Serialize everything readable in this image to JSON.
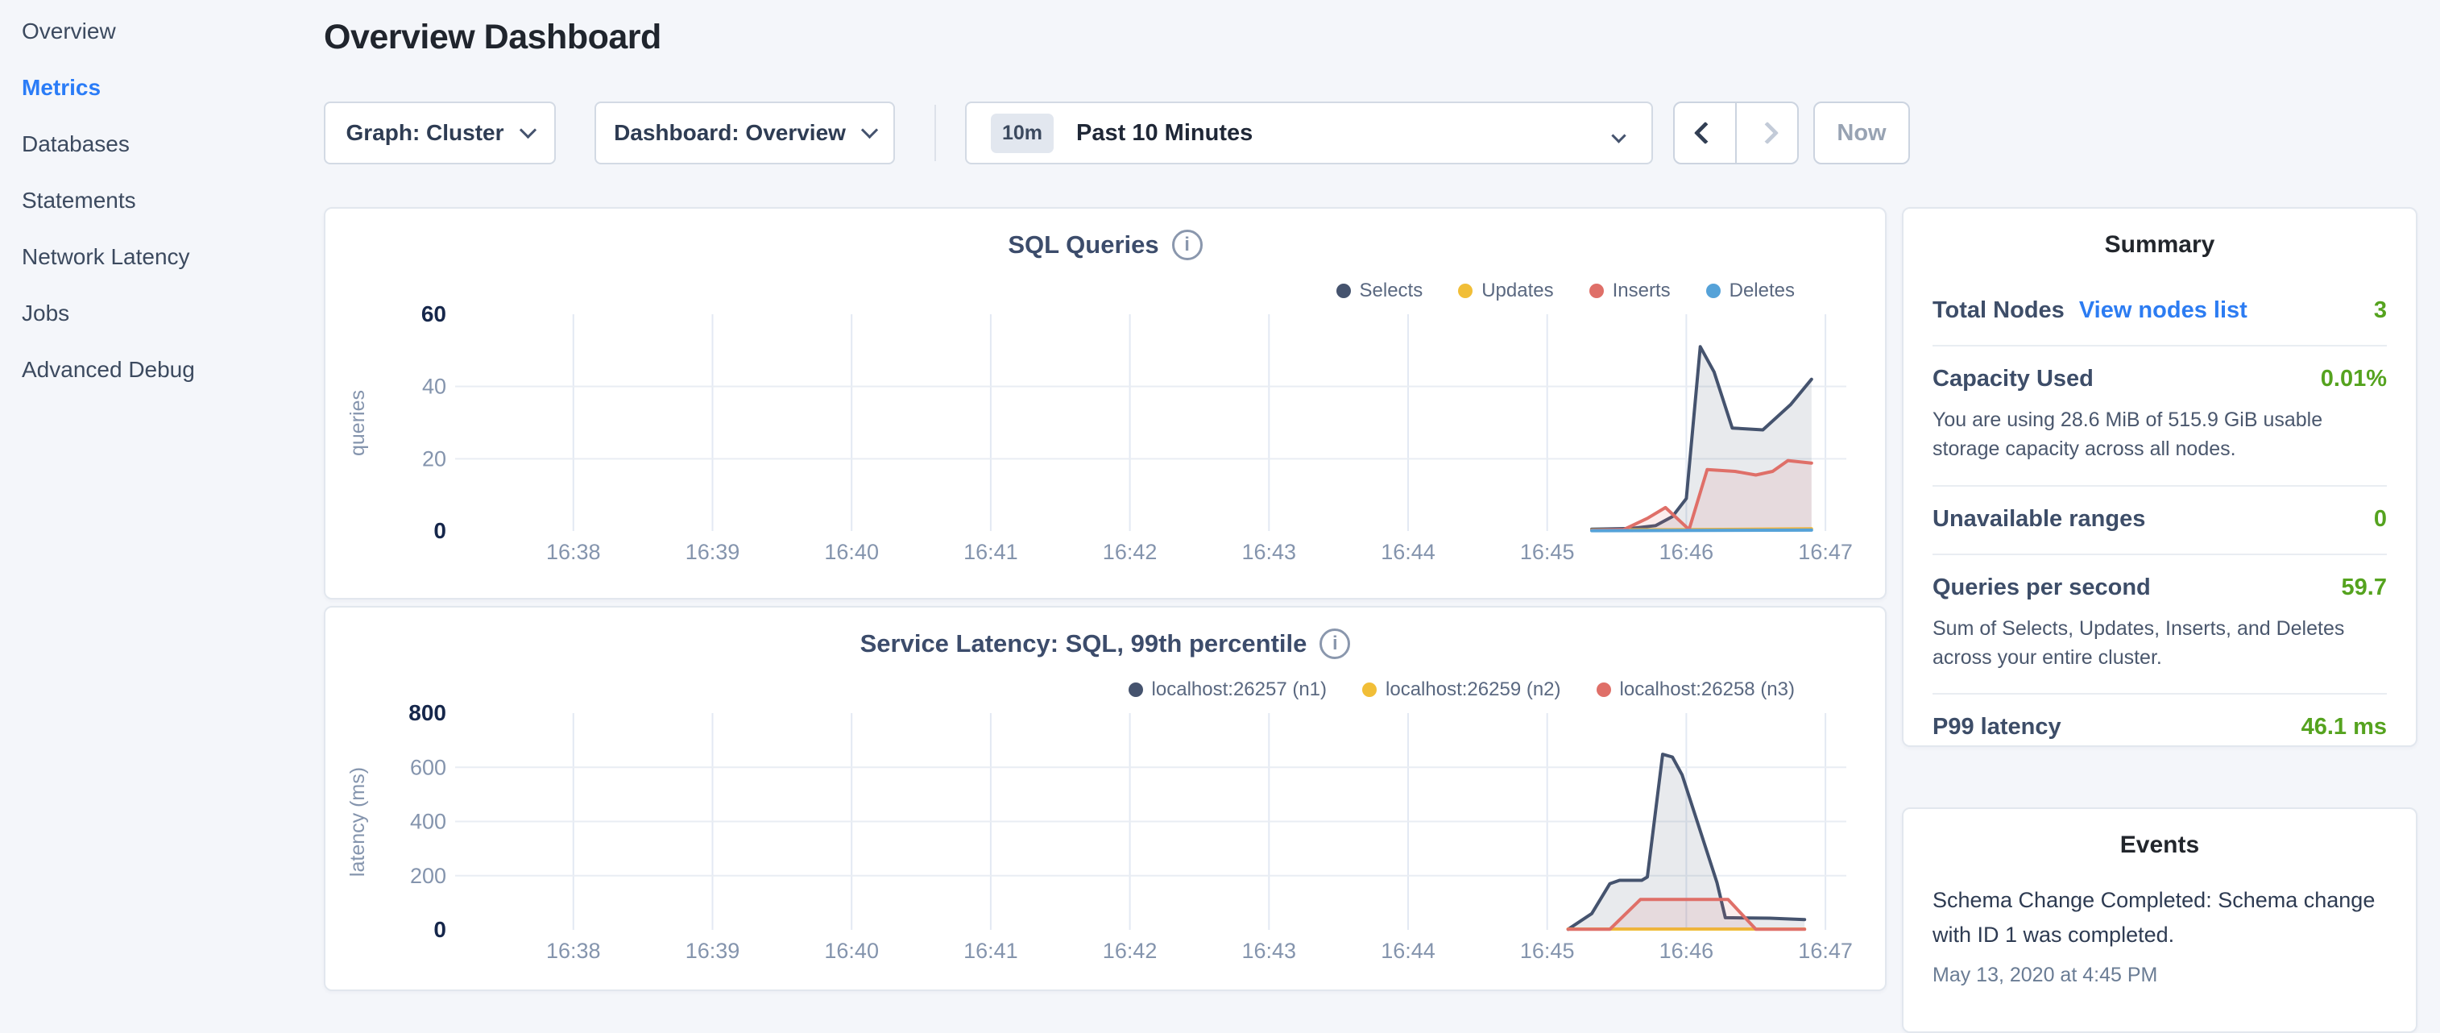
{
  "sidebar": {
    "items": [
      {
        "label": "Overview",
        "active": false
      },
      {
        "label": "Metrics",
        "active": true
      },
      {
        "label": "Databases",
        "active": false
      },
      {
        "label": "Statements",
        "active": false
      },
      {
        "label": "Network Latency",
        "active": false
      },
      {
        "label": "Jobs",
        "active": false
      },
      {
        "label": "Advanced Debug",
        "active": false
      }
    ]
  },
  "header": {
    "title": "Overview Dashboard"
  },
  "toolbar": {
    "graph_selector": "Graph: Cluster",
    "dashboard_selector": "Dashboard: Overview",
    "time_badge": "10m",
    "time_label": "Past 10 Minutes",
    "now_label": "Now"
  },
  "icons": {
    "info_glyph": "i"
  },
  "colors": {
    "accent_blue": "#2a7cf7",
    "link_blue": "#2c7cf2",
    "value_green": "#55a31f",
    "series_navy": "#45536e",
    "series_yellow": "#f1be37",
    "series_red": "#df6f68",
    "series_blue": "#55a2d8"
  },
  "summary": {
    "title": "Summary",
    "rows": [
      {
        "label": "Total Nodes",
        "link": "View nodes list",
        "value": "3"
      },
      {
        "label": "Capacity Used",
        "value": "0.01%",
        "description": "You are using 28.6 MiB of 515.9 GiB usable storage capacity across all nodes."
      },
      {
        "label": "Unavailable ranges",
        "value": "0"
      },
      {
        "label": "Queries per second",
        "value": "59.7",
        "description": "Sum of Selects, Updates, Inserts, and Deletes across your entire cluster."
      },
      {
        "label": "P99 latency",
        "value": "46.1 ms"
      }
    ]
  },
  "events": {
    "title": "Events",
    "items": [
      {
        "message": "Schema Change Completed: Schema change with ID 1 was completed.",
        "timestamp": "May 13, 2020 at 4:45 PM"
      }
    ]
  },
  "chart_data": [
    {
      "type": "area",
      "title": "SQL Queries",
      "xlabel": "",
      "ylabel": "queries",
      "ylim": [
        0,
        60
      ],
      "y_ticks": [
        0,
        20,
        40,
        60
      ],
      "x_tick_labels": [
        "16:38",
        "16:39",
        "16:40",
        "16:41",
        "16:42",
        "16:43",
        "16:44",
        "16:45",
        "16:46",
        "16:47"
      ],
      "x_min": -0.85,
      "x_max": 9.15,
      "grid": true,
      "legend_position": "top-right",
      "series": [
        {
          "name": "Selects",
          "color": "#45536e",
          "points": [
            [
              7.32,
              0.5
            ],
            [
              7.6,
              0.7
            ],
            [
              7.78,
              1.5
            ],
            [
              7.9,
              4
            ],
            [
              8.0,
              9
            ],
            [
              8.1,
              51
            ],
            [
              8.2,
              44
            ],
            [
              8.33,
              28.5
            ],
            [
              8.55,
              28
            ],
            [
              8.75,
              35
            ],
            [
              8.9,
              42
            ]
          ]
        },
        {
          "name": "Updates",
          "color": "#f1be37",
          "points": [
            [
              7.32,
              0.3
            ],
            [
              8.0,
              0.4
            ],
            [
              8.9,
              0.6
            ]
          ]
        },
        {
          "name": "Inserts",
          "color": "#df6f68",
          "points": [
            [
              7.32,
              0.2
            ],
            [
              7.55,
              0.4
            ],
            [
              7.72,
              3.5
            ],
            [
              7.85,
              6.5
            ],
            [
              8.02,
              0.4
            ],
            [
              8.15,
              17
            ],
            [
              8.35,
              16.5
            ],
            [
              8.5,
              15.5
            ],
            [
              8.62,
              16.5
            ],
            [
              8.73,
              19.5
            ],
            [
              8.9,
              18.8
            ]
          ]
        },
        {
          "name": "Deletes",
          "color": "#55a2d8",
          "points": [
            [
              7.32,
              0.1
            ],
            [
              8.9,
              0.25
            ]
          ]
        }
      ]
    },
    {
      "type": "area",
      "title": "Service Latency: SQL, 99th percentile",
      "xlabel": "",
      "ylabel": "latency (ms)",
      "ylim": [
        0,
        800
      ],
      "y_ticks": [
        0,
        200,
        400,
        600,
        800
      ],
      "x_tick_labels": [
        "16:38",
        "16:39",
        "16:40",
        "16:41",
        "16:42",
        "16:43",
        "16:44",
        "16:45",
        "16:46",
        "16:47"
      ],
      "x_min": -0.85,
      "x_max": 9.15,
      "grid": true,
      "legend_position": "top-right",
      "series": [
        {
          "name": "localhost:26257 (n1)",
          "color": "#45536e",
          "points": [
            [
              7.15,
              2
            ],
            [
              7.32,
              60
            ],
            [
              7.45,
              170
            ],
            [
              7.52,
              183
            ],
            [
              7.68,
              183
            ],
            [
              7.72,
              195
            ],
            [
              7.83,
              648
            ],
            [
              7.9,
              638
            ],
            [
              7.97,
              572
            ],
            [
              8.22,
              175
            ],
            [
              8.28,
              45
            ],
            [
              8.6,
              43
            ],
            [
              8.85,
              38
            ]
          ]
        },
        {
          "name": "localhost:26259 (n2)",
          "color": "#f1be37",
          "points": [
            [
              7.15,
              3
            ],
            [
              8.0,
              3
            ],
            [
              8.85,
              3
            ]
          ]
        },
        {
          "name": "localhost:26258 (n3)",
          "color": "#df6f68",
          "points": [
            [
              7.15,
              2
            ],
            [
              7.45,
              2
            ],
            [
              7.67,
              112
            ],
            [
              8.3,
              112
            ],
            [
              8.5,
              2
            ],
            [
              8.85,
              2
            ]
          ]
        }
      ]
    }
  ]
}
